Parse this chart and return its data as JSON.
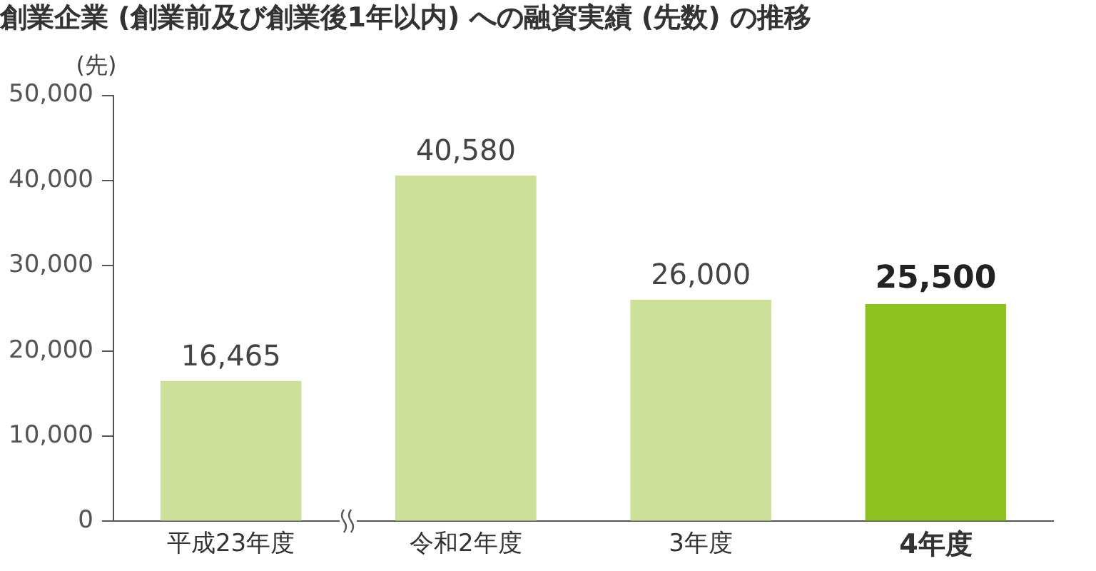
{
  "chart_data": {
    "type": "bar",
    "title": "創業企業 (創業前及び創業後1年以内) への融資実績 (先数) の推移",
    "ylabel": "(先)",
    "categories": [
      "平成23年度",
      "令和2年度",
      "3年度",
      "4年度"
    ],
    "values": [
      16465,
      40580,
      26000,
      25500
    ],
    "value_labels": [
      "16,465",
      "40,580",
      "26,000",
      "25,500"
    ],
    "colors": [
      "#cde09a",
      "#cde09a",
      "#cde09a",
      "#8dc21f"
    ],
    "ylim": [
      0,
      50000
    ],
    "yticks": [
      0,
      {
        "value": 10000,
        "label": "10,000"
      },
      {
        "value": 20000,
        "label": "20,000"
      },
      {
        "value": 30000,
        "label": "30,000"
      },
      {
        "value": 40000,
        "label": "40,000"
      },
      {
        "value": 50000,
        "label": "50,000"
      }
    ],
    "grid": false,
    "legend": false
  }
}
